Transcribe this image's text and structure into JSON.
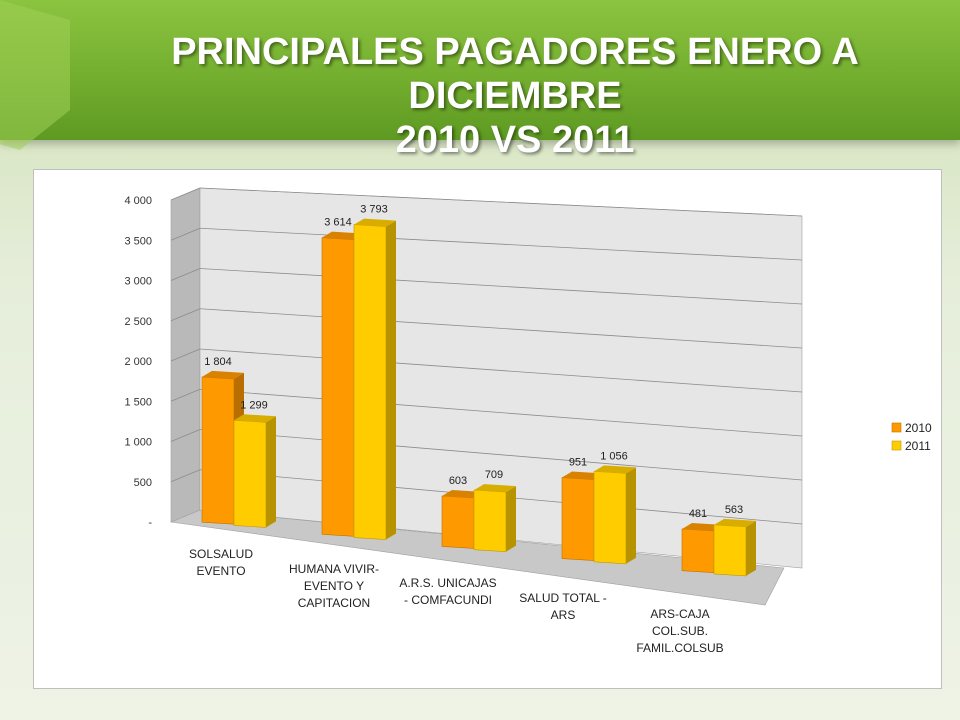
{
  "title": {
    "line1": "PRINCIPALES PAGADORES ENERO A  DICIEMBRE",
    "line2": "2010 VS 2011"
  },
  "chart_data": {
    "type": "bar",
    "categories": [
      [
        "SOLSALUD",
        "EVENTO"
      ],
      [
        "HUMANA VIVIR-",
        "EVENTO Y",
        "CAPITACION"
      ],
      [
        "A.R.S. UNICAJAS",
        "- COMFACUNDI"
      ],
      [
        "SALUD TOTAL -",
        "ARS"
      ],
      [
        "ARS-CAJA",
        "COL.SUB.",
        "FAMIL.COLSUB"
      ]
    ],
    "series": [
      {
        "name": "2010",
        "values": [
          1804,
          3614,
          603,
          951,
          481
        ],
        "labels": [
          "1 804",
          "3 614",
          "603",
          "951",
          "481"
        ],
        "color": "#ff9900"
      },
      {
        "name": "2011",
        "values": [
          1299,
          3793,
          709,
          1056,
          563
        ],
        "labels": [
          "1 299",
          "3 793",
          "709",
          "1 056",
          "563"
        ],
        "color": "#ffcc00"
      }
    ],
    "yticks": [
      "-",
      "500",
      "1 000",
      "1 500",
      "2 000",
      "2 500",
      "3 000",
      "3 500",
      "4 000"
    ],
    "ylim": [
      0,
      4000
    ],
    "legend_position": "right",
    "grid": true
  }
}
